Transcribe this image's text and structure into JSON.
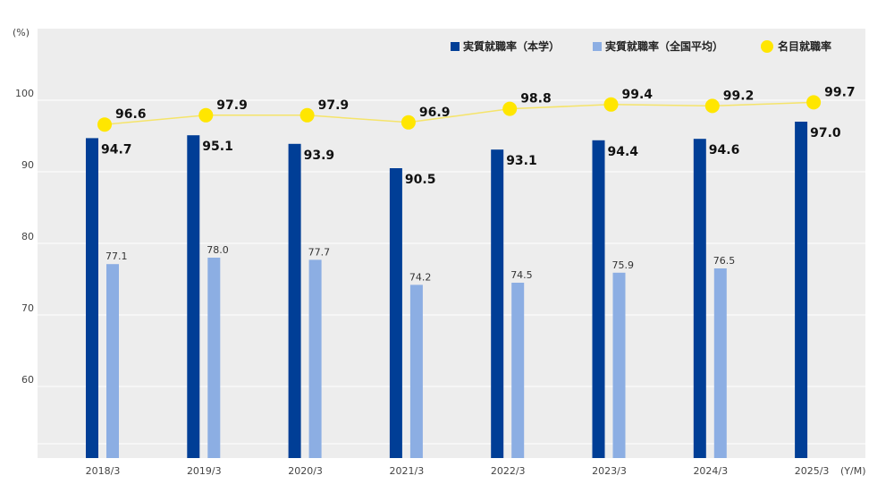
{
  "chart_data": {
    "type": "bar",
    "y_unit": "(%)",
    "x_unit": "(Y/M)",
    "categories": [
      "2018/3",
      "2019/3",
      "2020/3",
      "2021/3",
      "2022/3",
      "2023/3",
      "2024/3",
      "2025/3"
    ],
    "y_ticks": [
      "60",
      "70",
      "80",
      "90",
      "100"
    ],
    "ylim": [
      50,
      110
    ],
    "grid": true,
    "legend_position": "top-right",
    "series": [
      {
        "name": "実質就職率（本学）",
        "kind": "bar",
        "color": "#003e96",
        "values": [
          94.7,
          95.1,
          93.9,
          90.5,
          93.1,
          94.4,
          94.6,
          97.0
        ],
        "labels": [
          "94.7",
          "95.1",
          "93.9",
          "90.5",
          "93.1",
          "94.4",
          "94.6",
          "97.0"
        ]
      },
      {
        "name": "実質就職率（全国平均）",
        "kind": "bar",
        "color": "#8caee3",
        "values": [
          77.1,
          78.0,
          77.7,
          74.2,
          74.5,
          75.9,
          76.5,
          null
        ],
        "labels": [
          "77.1",
          "78.0",
          "77.7",
          "74.2",
          "74.5",
          "75.9",
          "76.5",
          ""
        ]
      },
      {
        "name": "名目就職率",
        "kind": "line",
        "color": "#ffe600",
        "line_color": "#f5e46a",
        "values": [
          96.6,
          97.9,
          97.9,
          96.9,
          98.8,
          99.4,
          99.2,
          99.7
        ],
        "labels": [
          "96.6",
          "97.9",
          "97.9",
          "96.9",
          "98.8",
          "99.4",
          "99.2",
          "99.7"
        ]
      }
    ]
  }
}
